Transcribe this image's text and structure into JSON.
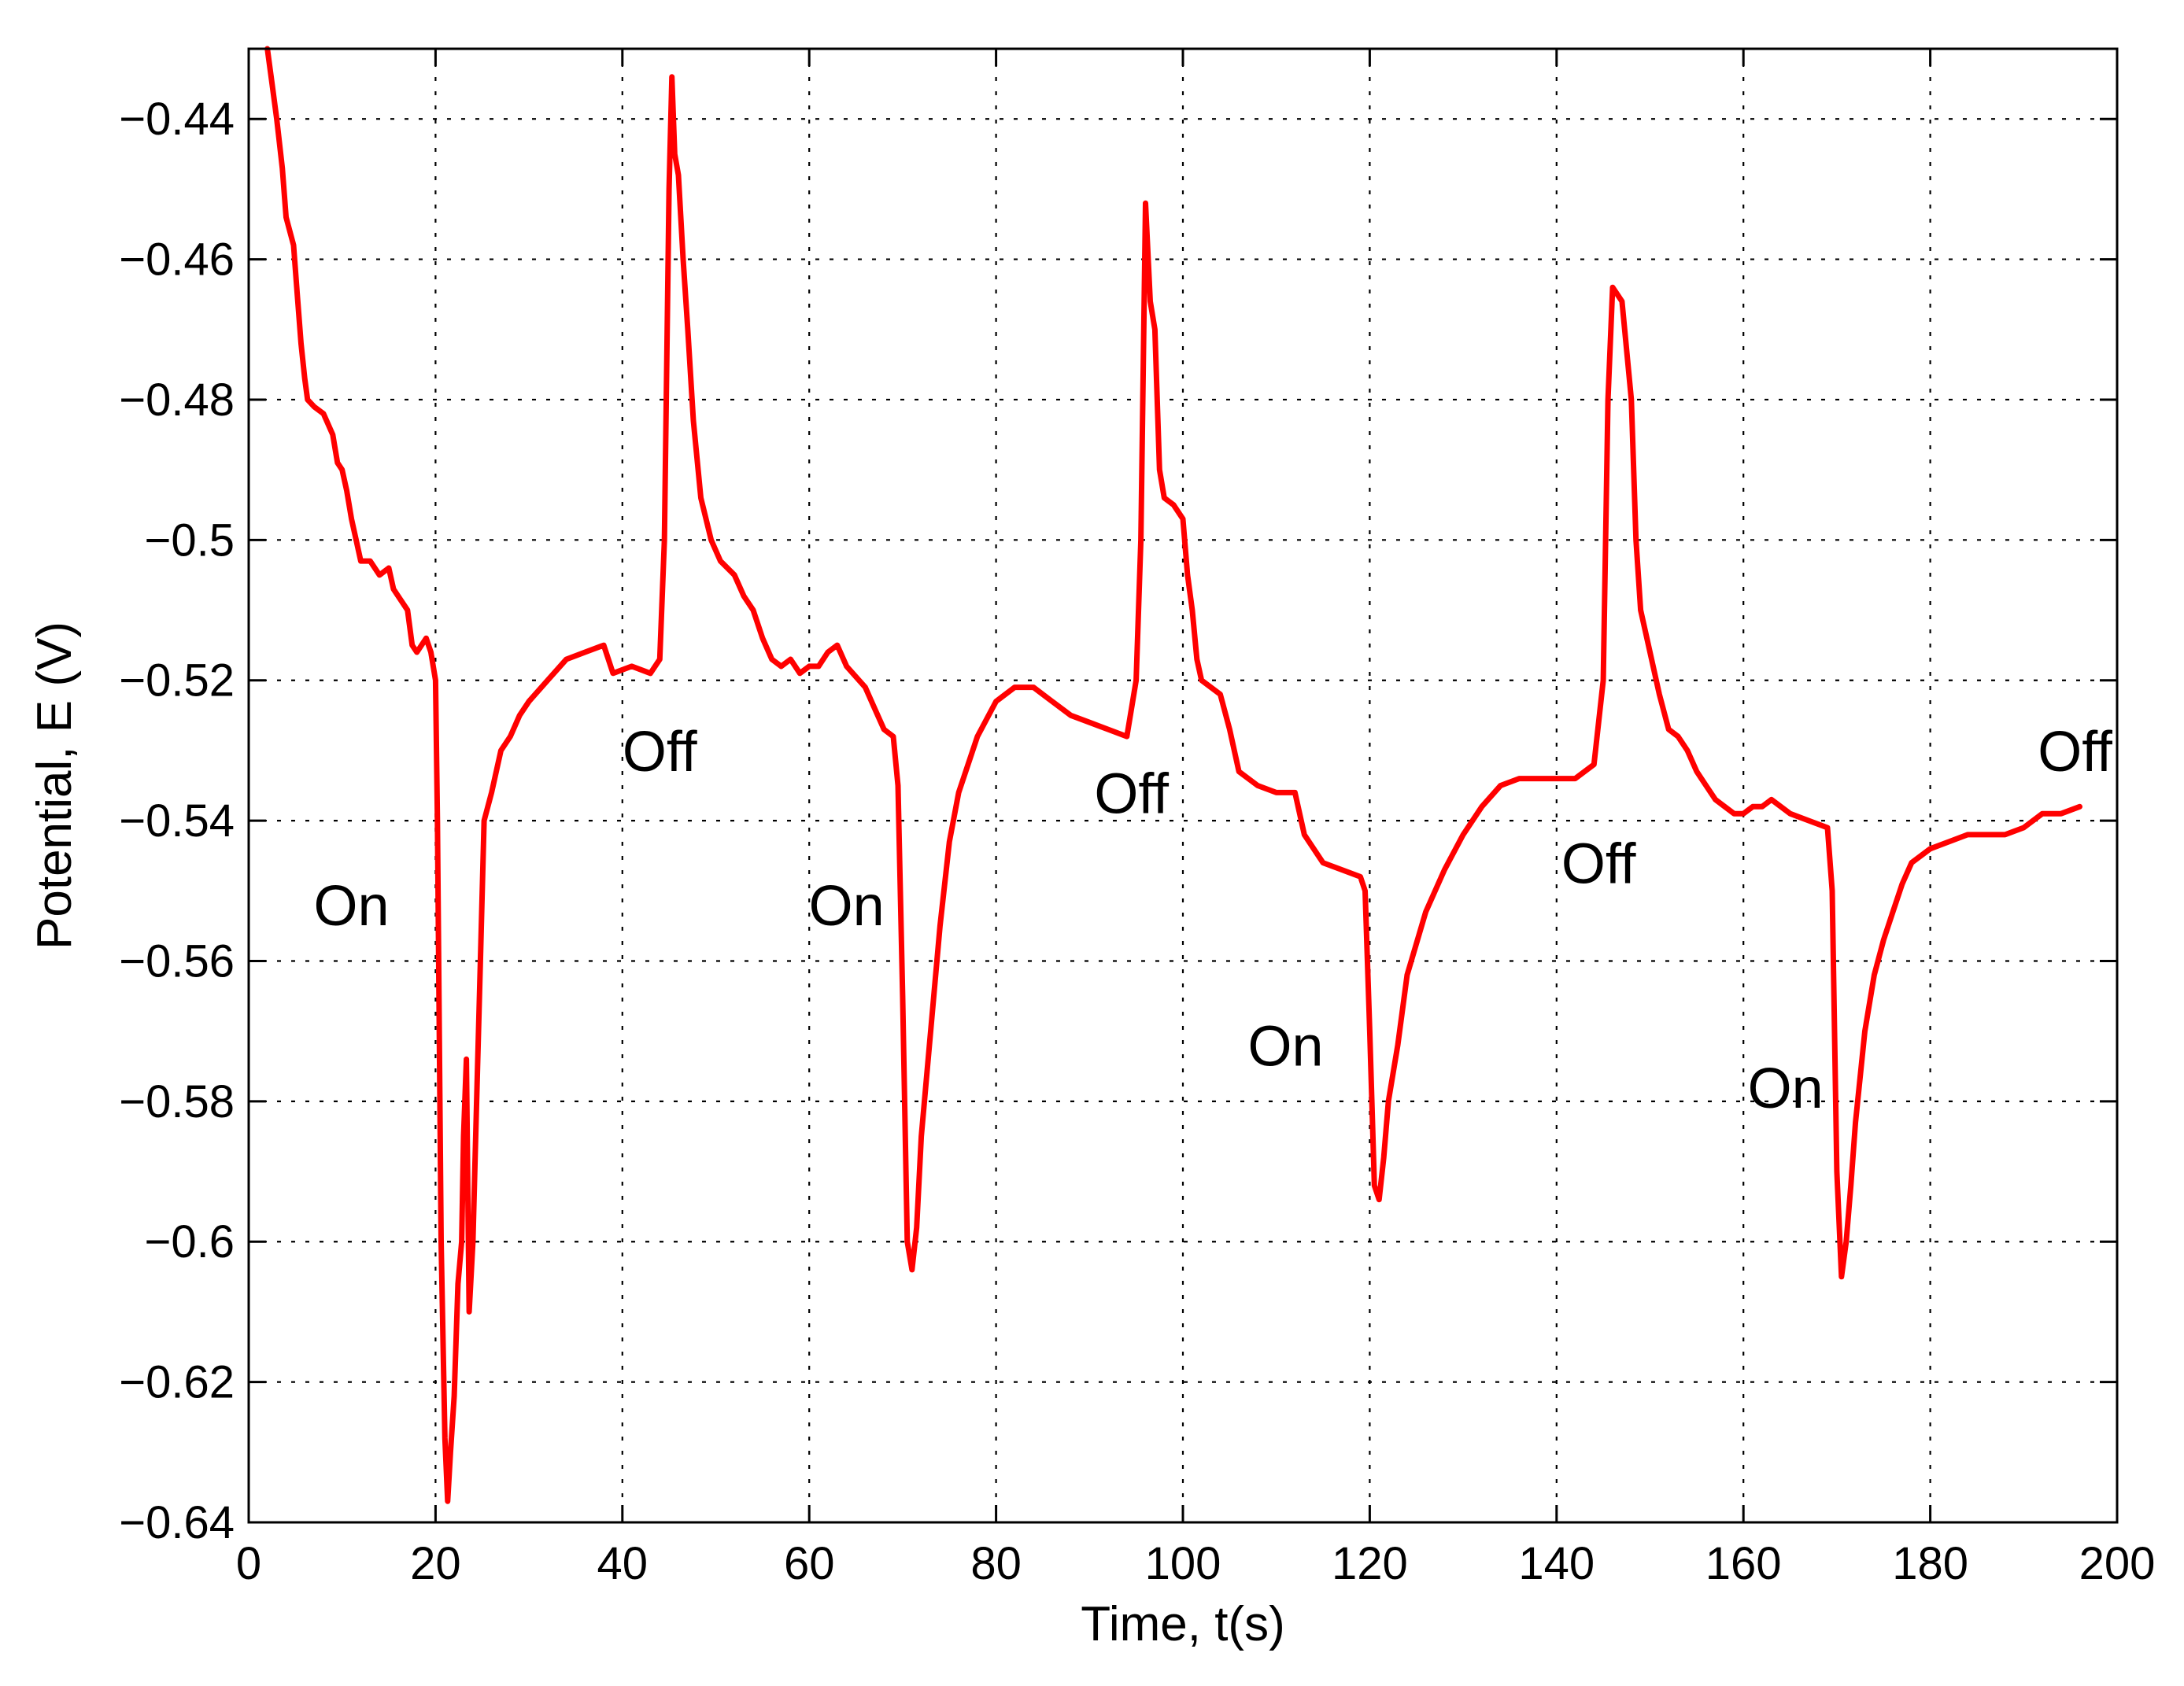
{
  "chart_data": {
    "type": "line",
    "title": "",
    "xlabel": "Time, t(s)",
    "ylabel": "Potential, E (V)",
    "xlim": [
      0,
      200
    ],
    "ylim": [
      -0.64,
      -0.43
    ],
    "x_ticks": [
      0,
      20,
      40,
      60,
      80,
      100,
      120,
      140,
      160,
      180,
      200
    ],
    "y_ticks": [
      -0.64,
      -0.62,
      -0.6,
      -0.58,
      -0.56,
      -0.54,
      -0.52,
      -0.5,
      -0.48,
      -0.46,
      -0.44
    ],
    "x_tick_labels": [
      "0",
      "20",
      "40",
      "60",
      "80",
      "100",
      "120",
      "140",
      "160",
      "180",
      "200"
    ],
    "y_tick_labels": [
      "−0.64",
      "−0.62",
      "−0.6",
      "−0.58",
      "−0.56",
      "−0.54",
      "−0.52",
      "−0.5",
      "−0.48",
      "−0.46",
      "−0.44"
    ],
    "grid": true,
    "series": [
      {
        "color": "#ff0000",
        "points": [
          [
            2,
            -0.43
          ],
          [
            2.5,
            -0.435
          ],
          [
            3,
            -0.44
          ],
          [
            3.6,
            -0.447
          ],
          [
            4,
            -0.454
          ],
          [
            4.8,
            -0.458
          ],
          [
            5.2,
            -0.465
          ],
          [
            5.6,
            -0.472
          ],
          [
            6,
            -0.477
          ],
          [
            6.3,
            -0.48
          ],
          [
            7,
            -0.481
          ],
          [
            8,
            -0.482
          ],
          [
            9,
            -0.485
          ],
          [
            9.5,
            -0.489
          ],
          [
            10,
            -0.49
          ],
          [
            10.5,
            -0.493
          ],
          [
            11,
            -0.497
          ],
          [
            11.5,
            -0.5
          ],
          [
            12,
            -0.503
          ],
          [
            13,
            -0.503
          ],
          [
            14,
            -0.505
          ],
          [
            15,
            -0.504
          ],
          [
            15.5,
            -0.507
          ],
          [
            16,
            -0.508
          ],
          [
            17,
            -0.51
          ],
          [
            17.5,
            -0.515
          ],
          [
            18,
            -0.516
          ],
          [
            19,
            -0.514
          ],
          [
            19.5,
            -0.516
          ],
          [
            20,
            -0.52
          ],
          [
            20.2,
            -0.54
          ],
          [
            20.6,
            -0.6
          ],
          [
            21,
            -0.628
          ],
          [
            21.3,
            -0.637
          ],
          [
            21.6,
            -0.63
          ],
          [
            22,
            -0.622
          ],
          [
            22.4,
            -0.606
          ],
          [
            22.8,
            -0.6
          ],
          [
            23,
            -0.585
          ],
          [
            23.3,
            -0.574
          ],
          [
            23.6,
            -0.61
          ],
          [
            24,
            -0.6
          ],
          [
            24.4,
            -0.58
          ],
          [
            24.8,
            -0.56
          ],
          [
            25.2,
            -0.54
          ],
          [
            26,
            -0.536
          ],
          [
            27,
            -0.53
          ],
          [
            28,
            -0.528
          ],
          [
            29,
            -0.525
          ],
          [
            30,
            -0.523
          ],
          [
            32,
            -0.52
          ],
          [
            34,
            -0.517
          ],
          [
            36,
            -0.516
          ],
          [
            38,
            -0.515
          ],
          [
            39,
            -0.519
          ],
          [
            41,
            -0.518
          ],
          [
            43,
            -0.519
          ],
          [
            44,
            -0.517
          ],
          [
            44.5,
            -0.5
          ],
          [
            45,
            -0.45
          ],
          [
            45.3,
            -0.434
          ],
          [
            45.6,
            -0.445
          ],
          [
            46,
            -0.448
          ],
          [
            46.5,
            -0.46
          ],
          [
            47,
            -0.47
          ],
          [
            47.6,
            -0.483
          ],
          [
            48.4,
            -0.494
          ],
          [
            49.5,
            -0.5
          ],
          [
            50.5,
            -0.503
          ],
          [
            52,
            -0.505
          ],
          [
            53,
            -0.508
          ],
          [
            54,
            -0.51
          ],
          [
            55,
            -0.514
          ],
          [
            56,
            -0.517
          ],
          [
            57,
            -0.518
          ],
          [
            58,
            -0.517
          ],
          [
            59,
            -0.519
          ],
          [
            60,
            -0.518
          ],
          [
            61,
            -0.518
          ],
          [
            62,
            -0.516
          ],
          [
            63,
            -0.515
          ],
          [
            64,
            -0.518
          ],
          [
            66,
            -0.521
          ],
          [
            67,
            -0.524
          ],
          [
            68,
            -0.527
          ],
          [
            69,
            -0.528
          ],
          [
            69.5,
            -0.535
          ],
          [
            70,
            -0.565
          ],
          [
            70.5,
            -0.6
          ],
          [
            71,
            -0.604
          ],
          [
            71.5,
            -0.598
          ],
          [
            72,
            -0.585
          ],
          [
            73,
            -0.57
          ],
          [
            74,
            -0.555
          ],
          [
            75,
            -0.543
          ],
          [
            76,
            -0.536
          ],
          [
            78,
            -0.528
          ],
          [
            80,
            -0.523
          ],
          [
            82,
            -0.521
          ],
          [
            84,
            -0.521
          ],
          [
            86,
            -0.523
          ],
          [
            88,
            -0.525
          ],
          [
            90,
            -0.526
          ],
          [
            92,
            -0.527
          ],
          [
            94,
            -0.528
          ],
          [
            95,
            -0.52
          ],
          [
            95.5,
            -0.5
          ],
          [
            96,
            -0.452
          ],
          [
            96.5,
            -0.466
          ],
          [
            97,
            -0.47
          ],
          [
            97.5,
            -0.49
          ],
          [
            98,
            -0.494
          ],
          [
            99,
            -0.495
          ],
          [
            100,
            -0.497
          ],
          [
            100.5,
            -0.505
          ],
          [
            101,
            -0.51
          ],
          [
            101.5,
            -0.517
          ],
          [
            102,
            -0.52
          ],
          [
            104,
            -0.522
          ],
          [
            105,
            -0.527
          ],
          [
            106,
            -0.533
          ],
          [
            108,
            -0.535
          ],
          [
            110,
            -0.536
          ],
          [
            112,
            -0.536
          ],
          [
            113,
            -0.542
          ],
          [
            115,
            -0.546
          ],
          [
            117,
            -0.547
          ],
          [
            119,
            -0.548
          ],
          [
            119.5,
            -0.55
          ],
          [
            120,
            -0.57
          ],
          [
            120.5,
            -0.592
          ],
          [
            121,
            -0.594
          ],
          [
            121.5,
            -0.588
          ],
          [
            122,
            -0.58
          ],
          [
            123,
            -0.572
          ],
          [
            124,
            -0.562
          ],
          [
            126,
            -0.553
          ],
          [
            128,
            -0.547
          ],
          [
            130,
            -0.542
          ],
          [
            132,
            -0.538
          ],
          [
            134,
            -0.535
          ],
          [
            136,
            -0.534
          ],
          [
            138,
            -0.534
          ],
          [
            140,
            -0.534
          ],
          [
            142,
            -0.534
          ],
          [
            144,
            -0.532
          ],
          [
            145,
            -0.52
          ],
          [
            145.5,
            -0.48
          ],
          [
            146,
            -0.464
          ],
          [
            147,
            -0.466
          ],
          [
            148,
            -0.48
          ],
          [
            148.5,
            -0.5
          ],
          [
            149,
            -0.51
          ],
          [
            150,
            -0.516
          ],
          [
            151,
            -0.522
          ],
          [
            152,
            -0.527
          ],
          [
            153,
            -0.528
          ],
          [
            154,
            -0.53
          ],
          [
            155,
            -0.533
          ],
          [
            156,
            -0.535
          ],
          [
            157,
            -0.537
          ],
          [
            158,
            -0.538
          ],
          [
            159,
            -0.539
          ],
          [
            160,
            -0.539
          ],
          [
            161,
            -0.538
          ],
          [
            162,
            -0.538
          ],
          [
            163,
            -0.537
          ],
          [
            165,
            -0.539
          ],
          [
            167,
            -0.54
          ],
          [
            169,
            -0.541
          ],
          [
            169.5,
            -0.55
          ],
          [
            170,
            -0.59
          ],
          [
            170.5,
            -0.605
          ],
          [
            171,
            -0.6
          ],
          [
            171.5,
            -0.592
          ],
          [
            172,
            -0.583
          ],
          [
            173,
            -0.57
          ],
          [
            174,
            -0.562
          ],
          [
            175,
            -0.557
          ],
          [
            176,
            -0.553
          ],
          [
            177,
            -0.549
          ],
          [
            178,
            -0.546
          ],
          [
            180,
            -0.544
          ],
          [
            182,
            -0.543
          ],
          [
            184,
            -0.542
          ],
          [
            186,
            -0.542
          ],
          [
            188,
            -0.542
          ],
          [
            190,
            -0.541
          ],
          [
            192,
            -0.539
          ],
          [
            194,
            -0.539
          ],
          [
            196,
            -0.538
          ]
        ]
      }
    ],
    "annotations": [
      {
        "text": "On",
        "x": 11,
        "y": -0.552
      },
      {
        "text": "Off",
        "x": 44,
        "y": -0.53
      },
      {
        "text": "On",
        "x": 64,
        "y": -0.552
      },
      {
        "text": "Off",
        "x": 94.5,
        "y": -0.536
      },
      {
        "text": "On",
        "x": 111,
        "y": -0.572
      },
      {
        "text": "Off",
        "x": 144.5,
        "y": -0.546
      },
      {
        "text": "On",
        "x": 164.5,
        "y": -0.578
      },
      {
        "text": "Off",
        "x": 195.5,
        "y": -0.53
      }
    ]
  }
}
